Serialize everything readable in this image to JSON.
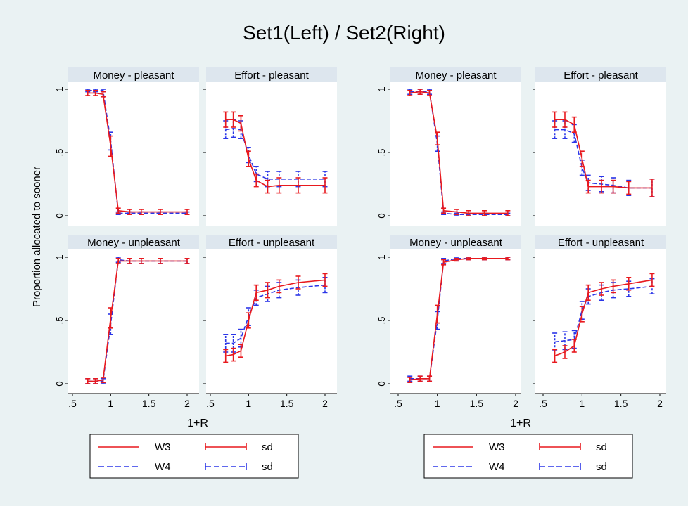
{
  "title": "Set1(Left) / Set2(Right)",
  "ylabel": "Proportion allocated to sooner",
  "xlabel": "1+R",
  "legend": {
    "items": [
      {
        "label": "W3",
        "style": "solid",
        "color": "#e8191e"
      },
      {
        "label": "sd",
        "style": "solid-bar",
        "color": "#e8191e"
      },
      {
        "label": "W4",
        "style": "dashed",
        "color": "#2b36e8"
      },
      {
        "label": "sd",
        "style": "dashed-bar",
        "color": "#2b36e8"
      }
    ]
  },
  "colors": {
    "W3": "#e8191e",
    "W4": "#2b36e8",
    "background": "#eaf2f3",
    "panel_header": "#dde6ee",
    "plot_area": "#ffffff"
  },
  "chart_data": [
    {
      "name": "Set1",
      "type": "line",
      "xlim": [
        0.5,
        2
      ],
      "ylim": [
        0,
        1
      ],
      "xticks": [
        ".5",
        "1",
        "1.5",
        "2"
      ],
      "yticks": [
        "0",
        ".5",
        "1"
      ],
      "panels": [
        {
          "title": "Money - pleasant",
          "x": [
            0.7,
            0.8,
            0.9,
            1.0,
            1.1,
            1.25,
            1.4,
            1.65,
            2.0
          ],
          "W3": {
            "y": [
              0.97,
              0.97,
              0.96,
              0.55,
              0.04,
              0.03,
              0.03,
              0.03,
              0.03
            ],
            "sd": [
              0.02,
              0.02,
              0.02,
              0.08,
              0.02,
              0.02,
              0.02,
              0.02,
              0.02
            ]
          },
          "W4": {
            "y": [
              0.99,
              0.99,
              0.99,
              0.59,
              0.02,
              0.02,
              0.02,
              0.02,
              0.02
            ],
            "sd": [
              0.01,
              0.01,
              0.01,
              0.07,
              0.01,
              0.01,
              0.01,
              0.01,
              0.01
            ]
          }
        },
        {
          "title": "Effort - pleasant",
          "x": [
            0.7,
            0.8,
            0.9,
            1.0,
            1.1,
            1.25,
            1.4,
            1.65,
            2.0
          ],
          "W3": {
            "y": [
              0.76,
              0.76,
              0.73,
              0.45,
              0.28,
              0.23,
              0.24,
              0.24,
              0.24
            ],
            "sd": [
              0.06,
              0.06,
              0.06,
              0.06,
              0.05,
              0.05,
              0.06,
              0.06,
              0.06
            ]
          },
          "W4": {
            "y": [
              0.68,
              0.69,
              0.68,
              0.48,
              0.33,
              0.29,
              0.29,
              0.29,
              0.29
            ],
            "sd": [
              0.07,
              0.07,
              0.07,
              0.06,
              0.06,
              0.06,
              0.06,
              0.06,
              0.06
            ]
          }
        },
        {
          "title": "Money - unpleasant",
          "x": [
            0.7,
            0.8,
            0.9,
            1.0,
            1.1,
            1.25,
            1.4,
            1.65,
            2.0
          ],
          "W3": {
            "y": [
              0.02,
              0.02,
              0.03,
              0.52,
              0.97,
              0.97,
              0.97,
              0.97,
              0.97
            ],
            "sd": [
              0.02,
              0.02,
              0.02,
              0.08,
              0.02,
              0.02,
              0.02,
              0.02,
              0.02
            ]
          },
          "W4": {
            "y": [
              0.02,
              0.02,
              0.02,
              0.47,
              0.98,
              0.97,
              0.97,
              0.97,
              0.97
            ],
            "sd": [
              0.02,
              0.02,
              0.02,
              0.08,
              0.02,
              0.02,
              0.02,
              0.02,
              0.02
            ]
          }
        },
        {
          "title": "Effort - unpleasant",
          "x": [
            0.7,
            0.8,
            0.9,
            1.0,
            1.1,
            1.25,
            1.4,
            1.65,
            2.0
          ],
          "W3": {
            "y": [
              0.22,
              0.23,
              0.26,
              0.5,
              0.72,
              0.74,
              0.77,
              0.8,
              0.82
            ],
            "sd": [
              0.05,
              0.05,
              0.05,
              0.06,
              0.06,
              0.06,
              0.05,
              0.05,
              0.05
            ]
          },
          "W4": {
            "y": [
              0.32,
              0.32,
              0.36,
              0.53,
              0.68,
              0.71,
              0.74,
              0.76,
              0.78
            ],
            "sd": [
              0.07,
              0.07,
              0.07,
              0.07,
              0.06,
              0.06,
              0.06,
              0.06,
              0.06
            ]
          }
        }
      ]
    },
    {
      "name": "Set2",
      "type": "line",
      "xlim": [
        0.5,
        2
      ],
      "ylim": [
        0,
        1
      ],
      "xticks": [
        ".5",
        "1",
        "1.5",
        "2"
      ],
      "yticks": [
        "0",
        ".5",
        "1"
      ],
      "panels": [
        {
          "title": "Money - pleasant",
          "x": [
            0.65,
            0.78,
            0.9,
            1.0,
            1.08,
            1.25,
            1.4,
            1.6,
            1.9
          ],
          "W3": {
            "y": [
              0.97,
              0.98,
              0.97,
              0.61,
              0.04,
              0.03,
              0.02,
              0.02,
              0.02
            ],
            "sd": [
              0.02,
              0.02,
              0.02,
              0.05,
              0.02,
              0.02,
              0.02,
              0.02,
              0.02
            ]
          },
          "W4": {
            "y": [
              0.98,
              0.98,
              0.98,
              0.57,
              0.02,
              0.01,
              0.01,
              0.01,
              0.01
            ],
            "sd": [
              0.02,
              0.02,
              0.02,
              0.06,
              0.01,
              0.01,
              0.01,
              0.01,
              0.01
            ]
          }
        },
        {
          "title": "Effort - pleasant",
          "x": [
            0.65,
            0.78,
            0.9,
            1.0,
            1.08,
            1.25,
            1.4,
            1.6,
            1.9
          ],
          "W3": {
            "y": [
              0.76,
              0.76,
              0.72,
              0.45,
              0.23,
              0.23,
              0.23,
              0.22,
              0.22
            ],
            "sd": [
              0.06,
              0.06,
              0.06,
              0.06,
              0.05,
              0.05,
              0.05,
              0.05,
              0.07
            ]
          },
          "W4": {
            "y": [
              0.68,
              0.68,
              0.65,
              0.38,
              0.26,
              0.25,
              0.24,
              0.22,
              0.22
            ],
            "sd": [
              0.07,
              0.07,
              0.07,
              0.06,
              0.06,
              0.06,
              0.06,
              0.06,
              0.07
            ]
          }
        },
        {
          "title": "Money - unpleasant",
          "x": [
            0.65,
            0.78,
            0.9,
            1.0,
            1.08,
            1.25,
            1.4,
            1.6,
            1.9
          ],
          "W3": {
            "y": [
              0.03,
              0.04,
              0.04,
              0.55,
              0.96,
              0.98,
              0.99,
              0.99,
              0.99
            ],
            "sd": [
              0.02,
              0.02,
              0.02,
              0.07,
              0.02,
              0.01,
              0.01,
              0.01,
              0.01
            ]
          },
          "W4": {
            "y": [
              0.04,
              0.04,
              0.04,
              0.5,
              0.97,
              0.99,
              0.99,
              0.99,
              0.99
            ],
            "sd": [
              0.02,
              0.02,
              0.02,
              0.07,
              0.02,
              0.01,
              0.01,
              0.01,
              0.01
            ]
          }
        },
        {
          "title": "Effort - unpleasant",
          "x": [
            0.65,
            0.78,
            0.9,
            1.0,
            1.08,
            1.25,
            1.4,
            1.6,
            1.9
          ],
          "W3": {
            "y": [
              0.22,
              0.25,
              0.3,
              0.55,
              0.72,
              0.75,
              0.77,
              0.79,
              0.82
            ],
            "sd": [
              0.05,
              0.05,
              0.05,
              0.06,
              0.06,
              0.05,
              0.05,
              0.05,
              0.05
            ]
          },
          "W4": {
            "y": [
              0.33,
              0.34,
              0.35,
              0.58,
              0.69,
              0.72,
              0.74,
              0.75,
              0.77
            ],
            "sd": [
              0.07,
              0.07,
              0.07,
              0.07,
              0.06,
              0.06,
              0.06,
              0.06,
              0.06
            ]
          }
        }
      ]
    }
  ]
}
